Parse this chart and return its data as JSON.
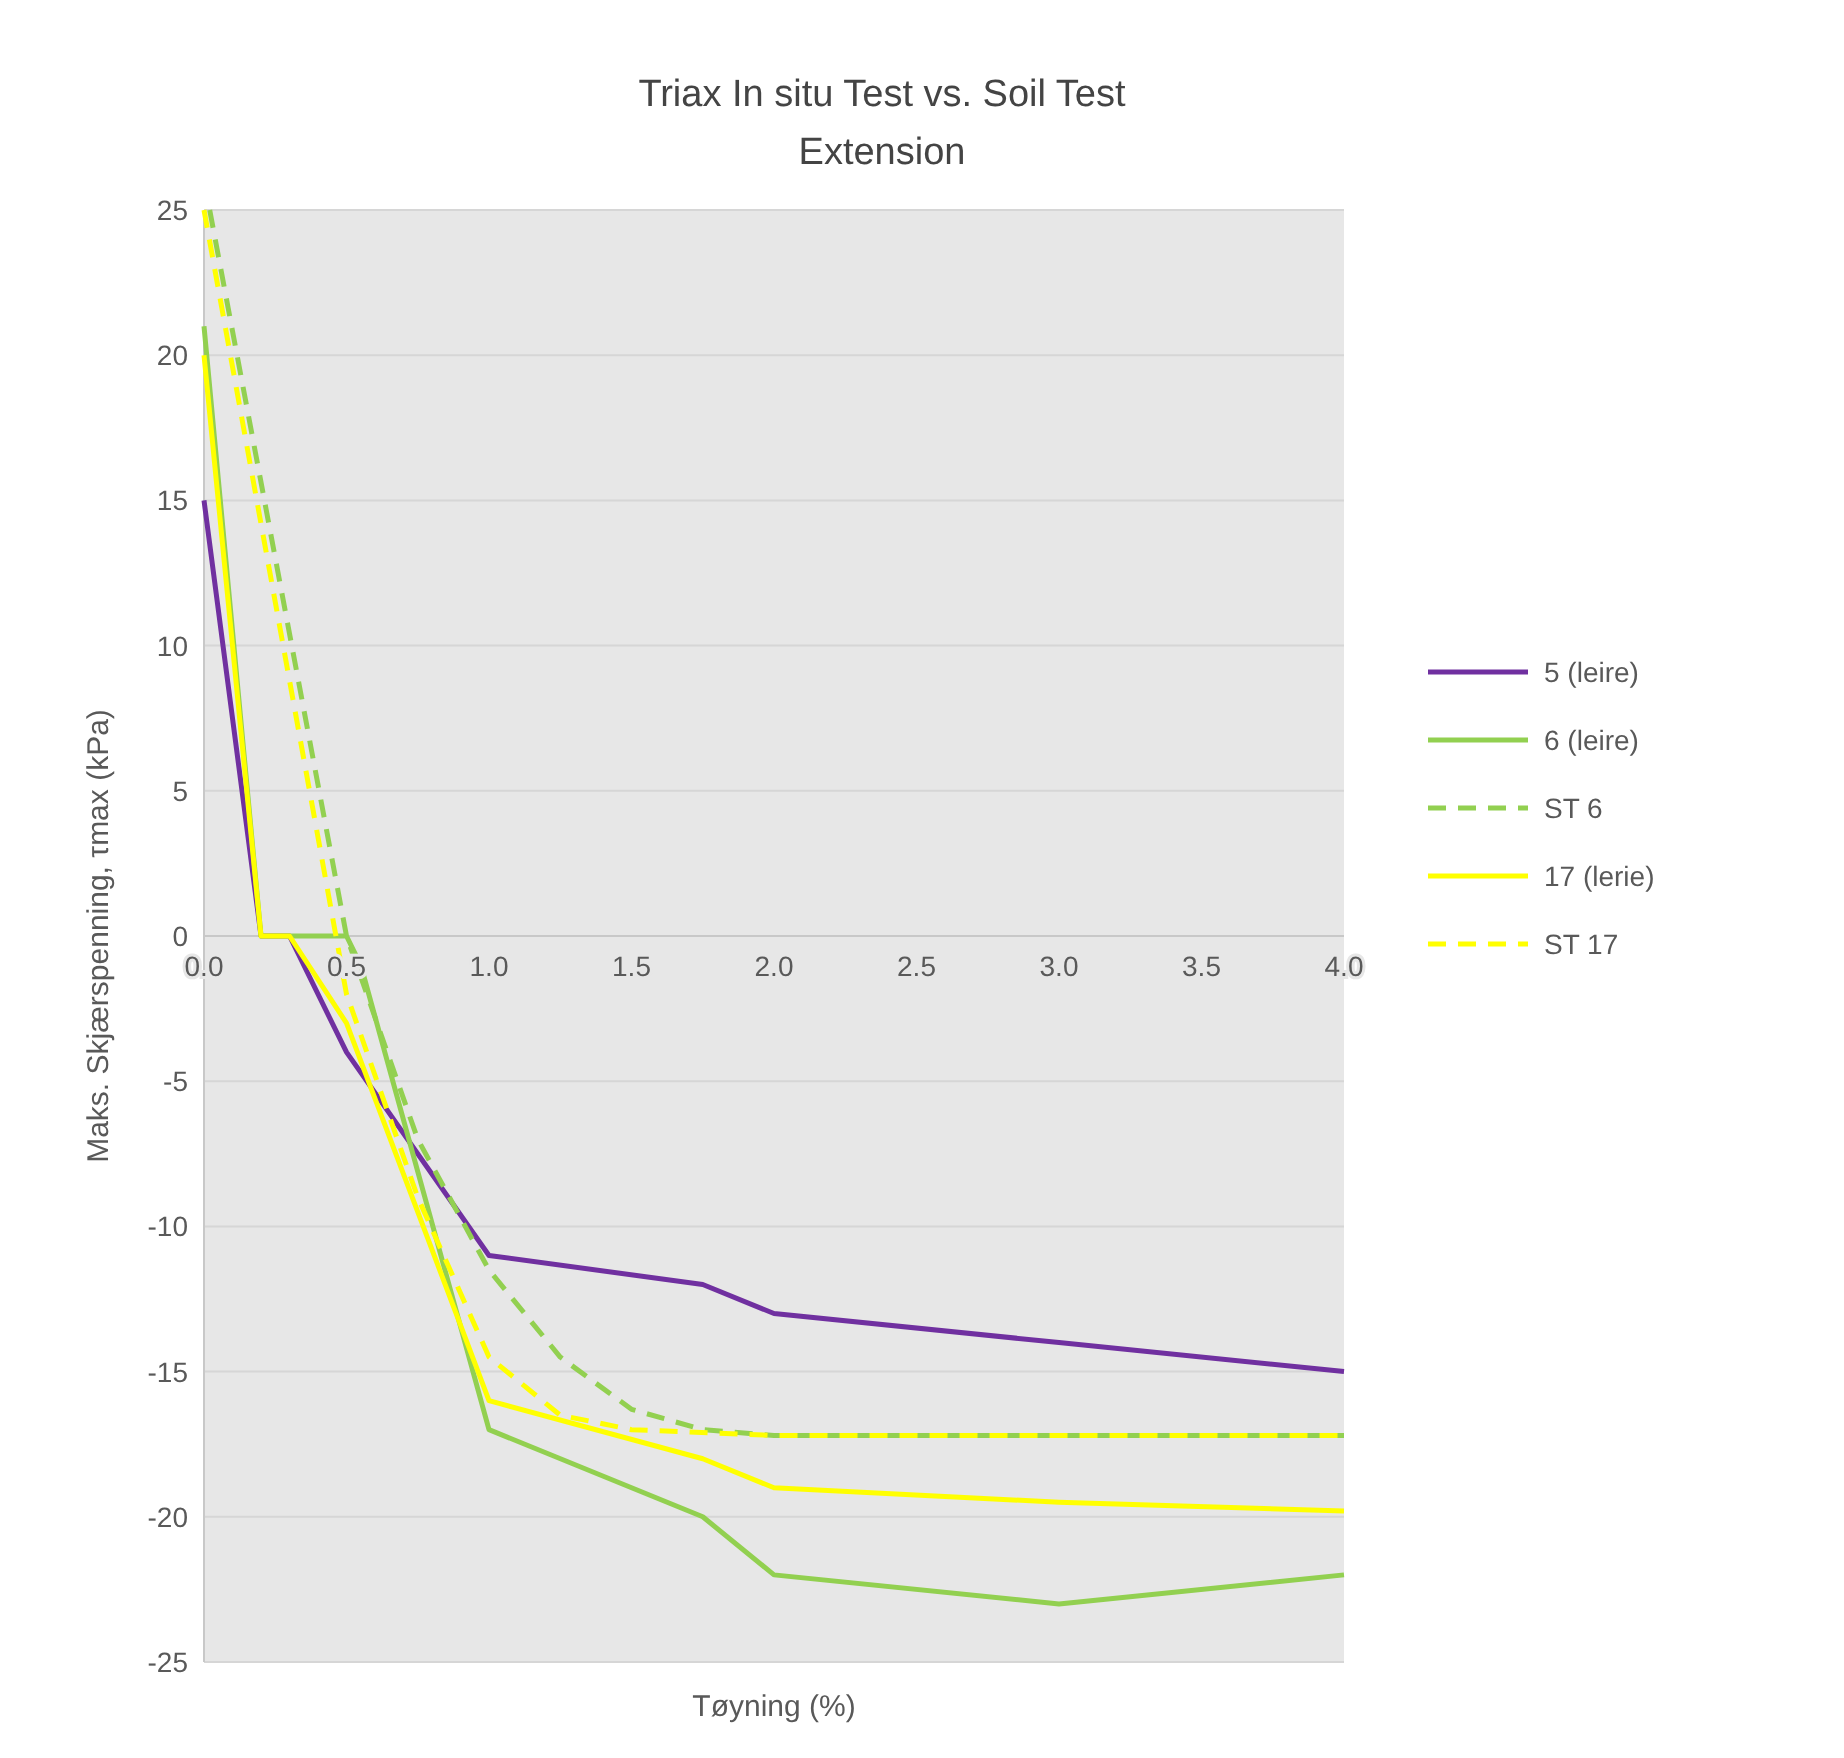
{
  "chart_data": {
    "type": "line",
    "title": "Triax In situ Test vs. Soil Test",
    "subtitle": "Extension",
    "xlabel": "Tøyning (%)",
    "ylabel": "Maks. Skjærspenning, τmax (kPa)",
    "xlim": [
      0,
      4
    ],
    "xticks": [
      {
        "value": 0,
        "label": "0.0"
      },
      {
        "value": 0.5,
        "label": "0.5"
      },
      {
        "value": 1,
        "label": "1.0"
      },
      {
        "value": 1.5,
        "label": "1.5"
      },
      {
        "value": 2,
        "label": "2.0"
      },
      {
        "value": 2.5,
        "label": "2.5"
      },
      {
        "value": 3,
        "label": "3.0"
      },
      {
        "value": 3.5,
        "label": "3.5"
      },
      {
        "value": 4,
        "label": "4.0"
      }
    ],
    "ylim": [
      -25,
      25
    ],
    "yticks": [
      -25,
      -20,
      -15,
      -10,
      -5,
      0,
      5,
      10,
      15,
      20,
      25
    ],
    "grid": "y",
    "legend": "right",
    "marker": "none",
    "series": [
      {
        "name": "5 (leire)",
        "color": "#7030a0",
        "line_style": "solid",
        "x": [
          0,
          0.2,
          0.3,
          0.5,
          1,
          1.75,
          2,
          3,
          4
        ],
        "values": [
          15,
          0,
          0,
          -4,
          -11,
          -12,
          -13,
          -14,
          -15
        ]
      },
      {
        "name": "6 (leire)",
        "color": "#92d050",
        "line_style": "solid",
        "x": [
          0,
          0.2,
          0.5,
          0.55,
          1,
          1.75,
          2,
          3,
          4
        ],
        "values": [
          21,
          0,
          0,
          -1,
          -17,
          -20,
          -22,
          -23,
          -22
        ]
      },
      {
        "name": "ST 6",
        "color": "#92d050",
        "line_style": "dashed",
        "x": [
          0.02,
          0.5,
          0.75,
          1,
          1.25,
          1.5,
          1.75,
          2,
          4
        ],
        "values": [
          25,
          0,
          -7,
          -11.5,
          -14.5,
          -16.3,
          -17,
          -17.2,
          -17.2
        ]
      },
      {
        "name": "17 (lerie)",
        "color": "#ffff00",
        "line_style": "solid",
        "x": [
          0,
          0.2,
          0.3,
          0.5,
          1,
          1.75,
          2,
          3,
          4
        ],
        "values": [
          20,
          0,
          0,
          -3,
          -16,
          -18,
          -19,
          -19.5,
          -19.8
        ]
      },
      {
        "name": "ST 17",
        "color": "#ffff00",
        "line_style": "dashed",
        "x": [
          0,
          0.5,
          0.75,
          1,
          1.25,
          1.5,
          2,
          4
        ],
        "values": [
          25,
          -2,
          -9,
          -14.5,
          -16.5,
          -17,
          -17.2,
          -17.2
        ]
      }
    ]
  }
}
